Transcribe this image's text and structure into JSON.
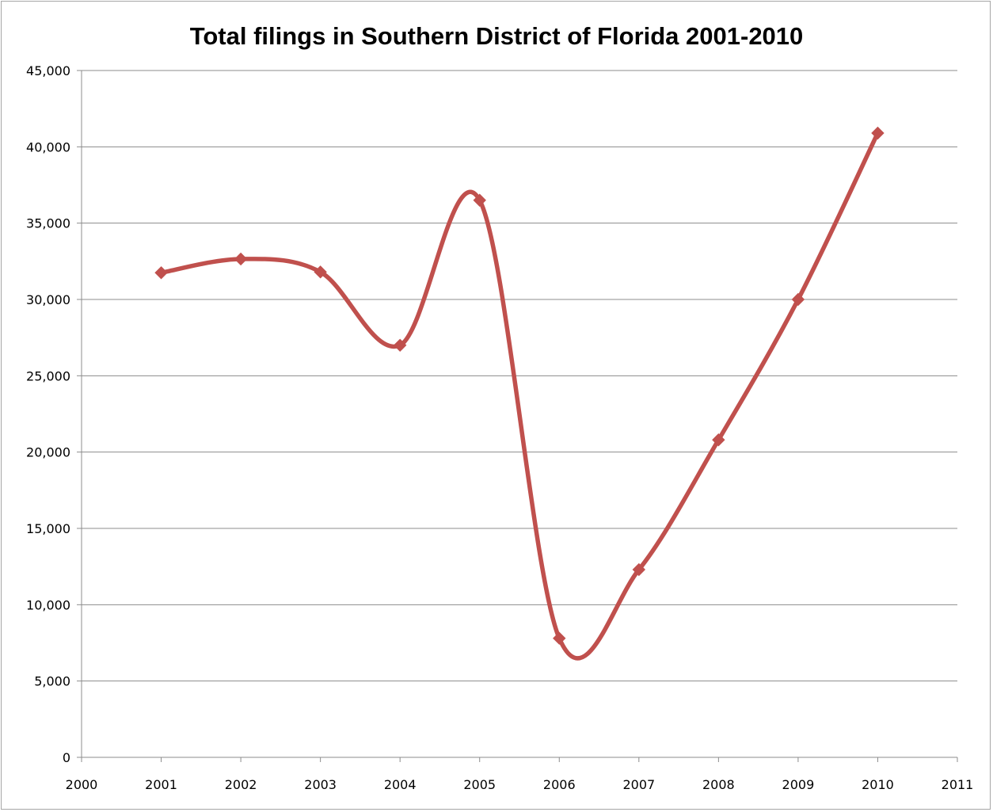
{
  "chart_data": {
    "type": "line",
    "title": "Total filings in Southern District of Florida 2001-2010",
    "xlabel": "",
    "ylabel": "",
    "x": [
      2001,
      2002,
      2003,
      2004,
      2005,
      2006,
      2007,
      2008,
      2009,
      2010
    ],
    "series": [
      {
        "values": [
          31750,
          32650,
          31800,
          27000,
          36500,
          7800,
          12300,
          20800,
          30000,
          40900
        ]
      }
    ],
    "xlim": [
      2000,
      2011
    ],
    "ylim": [
      0,
      45000
    ],
    "x_ticks": [
      2000,
      2001,
      2002,
      2003,
      2004,
      2005,
      2006,
      2007,
      2008,
      2009,
      2010,
      2011
    ],
    "x_tick_labels": [
      "2000",
      "2001",
      "2002",
      "2003",
      "2004",
      "2005",
      "2006",
      "2007",
      "2008",
      "2009",
      "2010",
      "2011"
    ],
    "y_ticks": [
      0,
      5000,
      10000,
      15000,
      20000,
      25000,
      30000,
      35000,
      40000,
      45000
    ],
    "y_tick_labels": [
      "0",
      "5,000",
      "10,000",
      "15,000",
      "20,000",
      "25,000",
      "30,000",
      "35,000",
      "40,000",
      "45,000"
    ],
    "grid": "horizontal",
    "legend": "none",
    "line_style": "smoothed",
    "marker": "diamond",
    "series_color": "#c0504d",
    "grid_color": "#8c8c8c"
  }
}
